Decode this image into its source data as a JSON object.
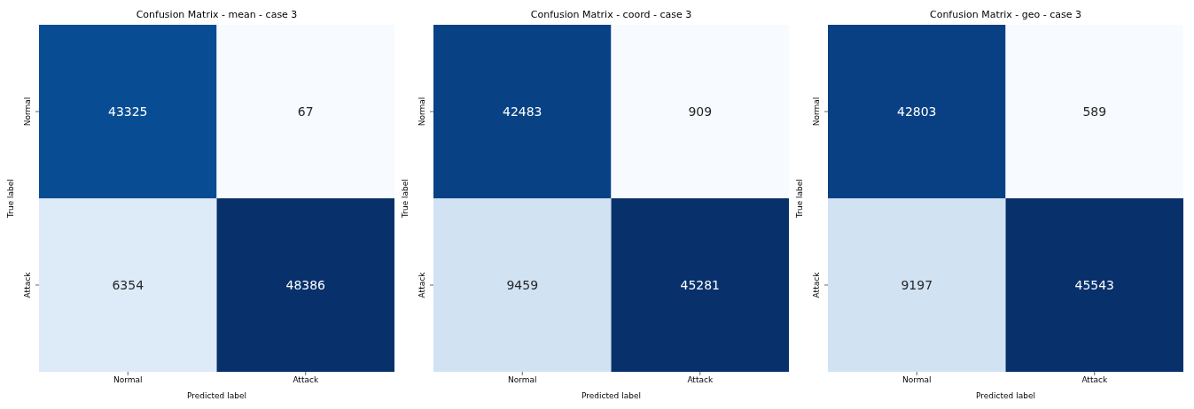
{
  "chart_data": [
    {
      "type": "heatmap",
      "title": "Confusion Matrix - mean - case 3",
      "xlabel": "Predicted label",
      "ylabel": "True label",
      "categories": [
        "Normal",
        "Attack"
      ],
      "y_categories": [
        "Normal",
        "Attack"
      ],
      "cells": [
        [
          43325,
          67
        ],
        [
          6354,
          48386
        ]
      ],
      "data_labels": true
    },
    {
      "type": "heatmap",
      "title": "Confusion Matrix - coord - case 3",
      "xlabel": "Predicted label",
      "ylabel": "True label",
      "categories": [
        "Normal",
        "Attack"
      ],
      "y_categories": [
        "Normal",
        "Attack"
      ],
      "cells": [
        [
          42483,
          909
        ],
        [
          9459,
          45281
        ]
      ],
      "data_labels": true
    },
    {
      "type": "heatmap",
      "title": "Confusion Matrix - geo - case 3",
      "xlabel": "Predicted label",
      "ylabel": "True label",
      "categories": [
        "Normal",
        "Attack"
      ],
      "y_categories": [
        "Normal",
        "Attack"
      ],
      "cells": [
        [
          42803,
          589
        ],
        [
          9197,
          45543
        ]
      ],
      "data_labels": true
    }
  ]
}
